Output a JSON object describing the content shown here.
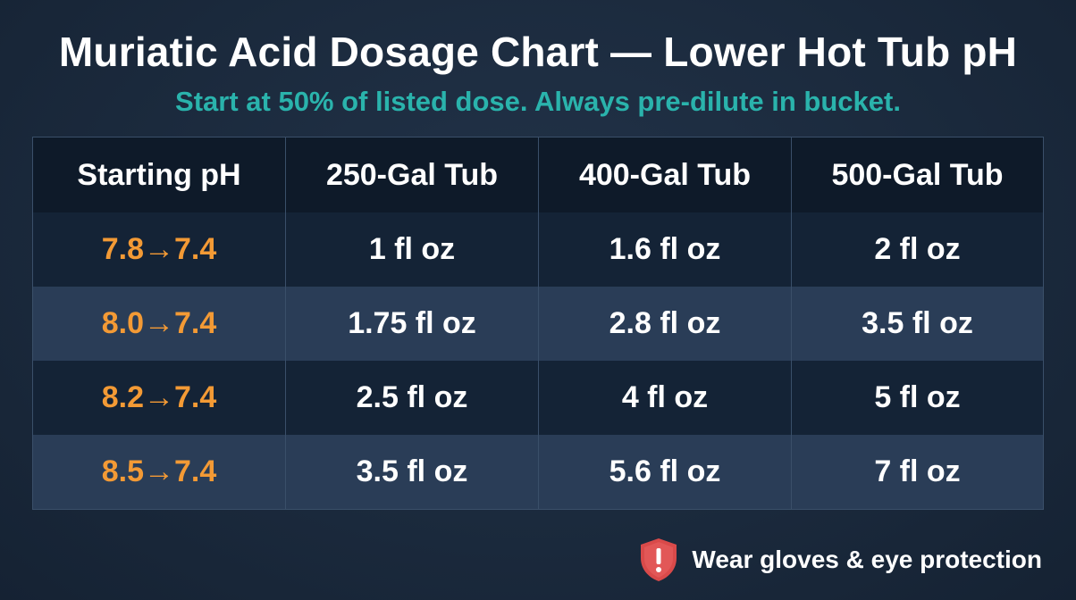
{
  "title": "Muriatic Acid Dosage Chart — Lower Hot Tub pH",
  "subtitle": "Start at 50% of listed dose. Always pre-dilute in bucket.",
  "table": {
    "headers": [
      "Starting pH",
      "250-Gal Tub",
      "400-Gal Tub",
      "500-Gal Tub"
    ],
    "rows": [
      [
        "7.8→7.4",
        "1 fl oz",
        "1.6 fl oz",
        "2 fl oz"
      ],
      [
        "8.0→7.4",
        "1.75 fl oz",
        "2.8 fl oz",
        "3.5 fl oz"
      ],
      [
        "8.2→7.4",
        "2.5 fl oz",
        "4 fl oz",
        "5 fl oz"
      ],
      [
        "8.5→7.4",
        "3.5 fl oz",
        "5.6 fl oz",
        "7 fl oz"
      ]
    ]
  },
  "warning": {
    "icon": "shield-exclamation-icon",
    "text": "Wear gloves & eye protection"
  },
  "colors": {
    "background": "#1b2a3d",
    "accent_teal": "#2ab3ac",
    "ph_orange": "#f39a35",
    "header_row": "#0e1a29",
    "row_dark": "#142336",
    "row_light": "#2a3d57",
    "warning_red": "#d94a4a"
  }
}
